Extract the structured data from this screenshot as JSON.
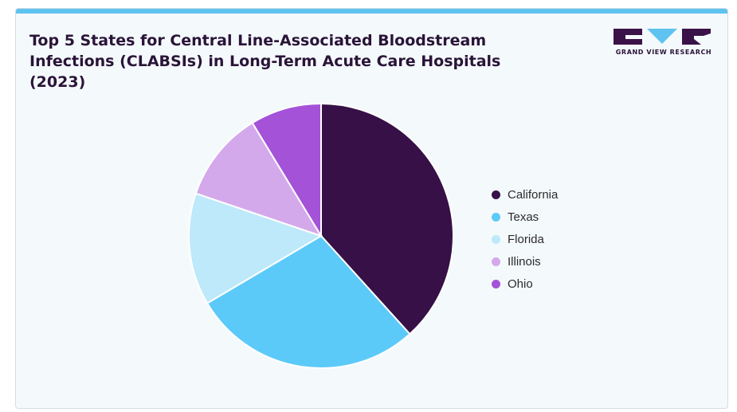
{
  "header": {
    "title": "Top 5 States for Central Line-Associated Bloodstream Infections (CLABSIs) in Long-Term Acute Care Hospitals (2023)",
    "logo_text": "GRAND VIEW RESEARCH"
  },
  "colors": {
    "accent_bar": "#5fc3ef",
    "logo": "#3b1248",
    "logo_v": "#5fc3ef"
  },
  "chart_data": {
    "type": "pie",
    "title": "Top 5 States for Central Line-Associated Bloodstream Infections (CLABSIs) in Long-Term Acute Care Hospitals (2023)",
    "legend_position": "right",
    "slices": [
      {
        "label": "California",
        "value": 38.3,
        "color": "#361046"
      },
      {
        "label": "Texas",
        "value": 28.2,
        "color": "#5ccaf8"
      },
      {
        "label": "Florida",
        "value": 13.7,
        "color": "#bde9fa"
      },
      {
        "label": "Illinois",
        "value": 11.1,
        "color": "#d4a9ec"
      },
      {
        "label": "Ohio",
        "value": 8.7,
        "color": "#a452d8"
      }
    ]
  }
}
